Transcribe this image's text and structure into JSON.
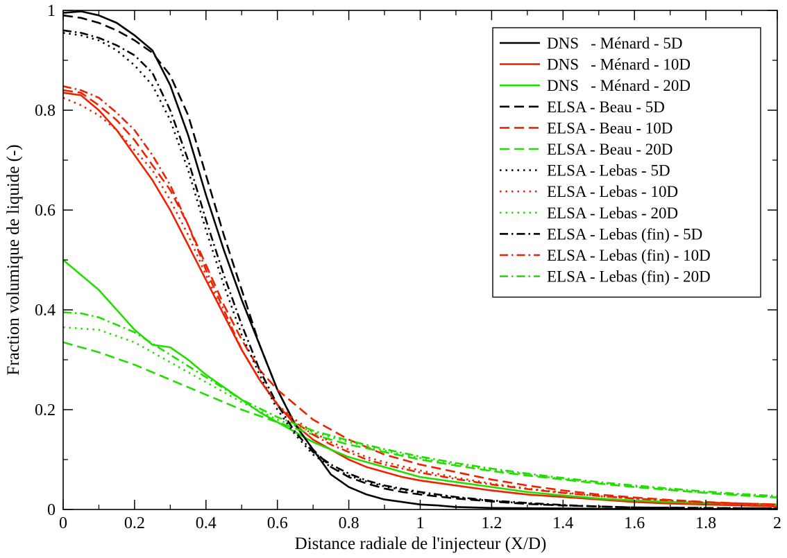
{
  "chart_data": {
    "type": "line",
    "title": "",
    "xlabel": "Distance radiale de l'injecteur (X/D)",
    "ylabel": "Fraction volumique de liquide (-)",
    "xlim": [
      0,
      2
    ],
    "ylim": [
      0,
      1
    ],
    "xticks": [
      0,
      0.2,
      0.4,
      0.6,
      0.8,
      1,
      1.2,
      1.4,
      1.6,
      1.8,
      2
    ],
    "xtick_labels": [
      "0",
      "0.2",
      "0.4",
      "0.6",
      "0.8",
      "1",
      "1.2",
      "1.4",
      "1.6",
      "1.8",
      "2"
    ],
    "yticks": [
      0,
      0.2,
      0.4,
      0.6,
      0.8,
      1
    ],
    "ytick_labels": [
      "0",
      "0.2",
      "0.4",
      "0.6",
      "0.8",
      "1"
    ],
    "grid": false,
    "legend_position": "top-right",
    "colors": {
      "black": "#000000",
      "red": "#ee2200",
      "green": "#22dd00"
    },
    "series": [
      {
        "name": "DNS   - Ménard - 5D",
        "color": "black",
        "dash": "solid",
        "x": [
          0,
          0.05,
          0.1,
          0.15,
          0.2,
          0.25,
          0.3,
          0.35,
          0.4,
          0.45,
          0.5,
          0.55,
          0.6,
          0.65,
          0.7,
          0.75,
          0.8,
          0.85,
          0.9,
          0.95,
          1.0,
          1.05,
          1.1,
          1.2,
          1.4,
          1.6,
          1.8,
          2.0
        ],
        "y": [
          0.995,
          0.998,
          0.99,
          0.975,
          0.95,
          0.92,
          0.85,
          0.75,
          0.63,
          0.52,
          0.42,
          0.33,
          0.24,
          0.17,
          0.12,
          0.07,
          0.045,
          0.03,
          0.02,
          0.015,
          0.01,
          0.008,
          0.005,
          0.003,
          0.002,
          0.001,
          0.001,
          0.001
        ]
      },
      {
        "name": "DNS   - Ménard - 10D",
        "color": "red",
        "dash": "solid",
        "x": [
          0,
          0.05,
          0.1,
          0.15,
          0.2,
          0.25,
          0.3,
          0.35,
          0.4,
          0.45,
          0.5,
          0.55,
          0.6,
          0.65,
          0.7,
          0.75,
          0.8,
          0.85,
          0.9,
          0.95,
          1.0,
          1.05,
          1.1,
          1.2,
          1.3,
          1.4,
          1.5,
          1.6,
          1.7,
          1.8,
          1.9,
          2.0
        ],
        "y": [
          0.835,
          0.83,
          0.8,
          0.76,
          0.71,
          0.66,
          0.6,
          0.53,
          0.46,
          0.39,
          0.32,
          0.26,
          0.21,
          0.17,
          0.14,
          0.12,
          0.1,
          0.085,
          0.075,
          0.065,
          0.058,
          0.053,
          0.048,
          0.038,
          0.03,
          0.025,
          0.02,
          0.015,
          0.012,
          0.01,
          0.008,
          0.006
        ]
      },
      {
        "name": "DNS   - Ménard - 20D",
        "color": "green",
        "dash": "solid",
        "x": [
          0,
          0.05,
          0.1,
          0.15,
          0.2,
          0.25,
          0.3,
          0.35,
          0.4,
          0.45,
          0.5,
          0.55,
          0.6,
          0.65,
          0.7,
          0.75,
          0.8,
          0.85,
          0.9,
          0.95,
          1.0,
          1.1,
          1.2,
          1.3,
          1.4,
          1.5,
          1.6,
          1.7,
          1.8,
          1.9,
          2.0
        ],
        "y": [
          0.5,
          0.47,
          0.44,
          0.4,
          0.36,
          0.33,
          0.325,
          0.3,
          0.27,
          0.245,
          0.22,
          0.195,
          0.175,
          0.155,
          0.135,
          0.12,
          0.105,
          0.095,
          0.085,
          0.075,
          0.065,
          0.055,
          0.045,
          0.035,
          0.028,
          0.022,
          0.018,
          0.015,
          0.013,
          0.012,
          0.01
        ]
      },
      {
        "name": "ELSA - Beau - 5D",
        "color": "black",
        "dash": "dash",
        "x": [
          0,
          0.05,
          0.1,
          0.15,
          0.2,
          0.25,
          0.3,
          0.35,
          0.4,
          0.45,
          0.5,
          0.55,
          0.6,
          0.65,
          0.7,
          0.75,
          0.8,
          0.85,
          0.9,
          0.95,
          1.0,
          1.1,
          1.2,
          1.3,
          1.4,
          1.5,
          1.6,
          1.8,
          2.0
        ],
        "y": [
          0.99,
          0.985,
          0.975,
          0.96,
          0.94,
          0.915,
          0.87,
          0.79,
          0.67,
          0.55,
          0.44,
          0.33,
          0.24,
          0.17,
          0.12,
          0.085,
          0.065,
          0.052,
          0.042,
          0.035,
          0.03,
          0.022,
          0.016,
          0.011,
          0.008,
          0.006,
          0.004,
          0.003,
          0.002
        ]
      },
      {
        "name": "ELSA - Beau - 10D",
        "color": "red",
        "dash": "dash",
        "x": [
          0,
          0.05,
          0.1,
          0.15,
          0.2,
          0.25,
          0.3,
          0.35,
          0.4,
          0.45,
          0.5,
          0.55,
          0.6,
          0.65,
          0.7,
          0.75,
          0.8,
          0.85,
          0.9,
          0.95,
          1.0,
          1.1,
          1.2,
          1.3,
          1.4,
          1.5,
          1.6,
          1.7,
          1.8,
          1.9,
          2.0
        ],
        "y": [
          0.84,
          0.835,
          0.81,
          0.78,
          0.74,
          0.69,
          0.64,
          0.57,
          0.49,
          0.41,
          0.34,
          0.28,
          0.24,
          0.21,
          0.18,
          0.16,
          0.14,
          0.125,
          0.11,
          0.1,
          0.09,
          0.075,
          0.06,
          0.048,
          0.038,
          0.03,
          0.024,
          0.019,
          0.015,
          0.012,
          0.01
        ]
      },
      {
        "name": "ELSA - Beau - 20D",
        "color": "green",
        "dash": "dash",
        "x": [
          0,
          0.1,
          0.2,
          0.3,
          0.4,
          0.5,
          0.6,
          0.7,
          0.8,
          0.9,
          1.0,
          1.1,
          1.2,
          1.3,
          1.4,
          1.5,
          1.6,
          1.7,
          1.8,
          1.9,
          2.0
        ],
        "y": [
          0.335,
          0.315,
          0.29,
          0.26,
          0.23,
          0.2,
          0.175,
          0.15,
          0.13,
          0.115,
          0.1,
          0.088,
          0.077,
          0.068,
          0.06,
          0.052,
          0.045,
          0.039,
          0.033,
          0.028,
          0.024
        ]
      },
      {
        "name": "ELSA - Lebas - 5D",
        "color": "black",
        "dash": "dot",
        "x": [
          0,
          0.05,
          0.1,
          0.15,
          0.2,
          0.25,
          0.3,
          0.35,
          0.4,
          0.45,
          0.5,
          0.55,
          0.6,
          0.65,
          0.7,
          0.75,
          0.8,
          0.85,
          0.9,
          1.0,
          1.1,
          1.2,
          1.3,
          1.4,
          1.5,
          1.6,
          1.8,
          2.0
        ],
        "y": [
          0.955,
          0.95,
          0.94,
          0.92,
          0.89,
          0.85,
          0.78,
          0.68,
          0.56,
          0.45,
          0.35,
          0.27,
          0.2,
          0.15,
          0.11,
          0.085,
          0.068,
          0.056,
          0.046,
          0.033,
          0.024,
          0.017,
          0.012,
          0.008,
          0.006,
          0.004,
          0.003,
          0.002
        ]
      },
      {
        "name": "ELSA - Lebas - 10D",
        "color": "red",
        "dash": "dot",
        "x": [
          0,
          0.05,
          0.1,
          0.15,
          0.2,
          0.25,
          0.3,
          0.35,
          0.4,
          0.45,
          0.5,
          0.55,
          0.6,
          0.65,
          0.7,
          0.75,
          0.8,
          0.85,
          0.9,
          1.0,
          1.1,
          1.2,
          1.3,
          1.4,
          1.5,
          1.6,
          1.7,
          1.8,
          1.9,
          2.0
        ],
        "y": [
          0.825,
          0.81,
          0.79,
          0.76,
          0.72,
          0.68,
          0.62,
          0.55,
          0.47,
          0.39,
          0.32,
          0.26,
          0.21,
          0.18,
          0.155,
          0.135,
          0.12,
          0.105,
          0.095,
          0.078,
          0.064,
          0.052,
          0.042,
          0.034,
          0.027,
          0.022,
          0.018,
          0.014,
          0.011,
          0.009
        ]
      },
      {
        "name": "ELSA - Lebas - 20D",
        "color": "green",
        "dash": "dot",
        "x": [
          0,
          0.1,
          0.2,
          0.3,
          0.4,
          0.5,
          0.6,
          0.7,
          0.8,
          0.9,
          1.0,
          1.1,
          1.2,
          1.3,
          1.4,
          1.5,
          1.6,
          1.7,
          1.8,
          1.9,
          2.0
        ],
        "y": [
          0.365,
          0.36,
          0.335,
          0.295,
          0.255,
          0.215,
          0.18,
          0.155,
          0.135,
          0.118,
          0.103,
          0.09,
          0.079,
          0.07,
          0.061,
          0.053,
          0.046,
          0.04,
          0.034,
          0.029,
          0.025
        ]
      },
      {
        "name": "ELSA - Lebas (fin) - 5D",
        "color": "black",
        "dash": "dashdot",
        "x": [
          0,
          0.05,
          0.1,
          0.15,
          0.2,
          0.25,
          0.3,
          0.35,
          0.4,
          0.45,
          0.5,
          0.55,
          0.6,
          0.65,
          0.7,
          0.75,
          0.8,
          0.85,
          0.9,
          1.0,
          1.1,
          1.2,
          1.3,
          1.4,
          1.5,
          1.6,
          1.8,
          2.0
        ],
        "y": [
          0.96,
          0.955,
          0.945,
          0.93,
          0.91,
          0.875,
          0.8,
          0.7,
          0.58,
          0.47,
          0.37,
          0.28,
          0.21,
          0.155,
          0.115,
          0.09,
          0.072,
          0.058,
          0.048,
          0.035,
          0.025,
          0.018,
          0.013,
          0.009,
          0.006,
          0.004,
          0.003,
          0.002
        ]
      },
      {
        "name": "ELSA - Lebas (fin) - 10D",
        "color": "red",
        "dash": "dashdot",
        "x": [
          0,
          0.05,
          0.1,
          0.15,
          0.2,
          0.25,
          0.3,
          0.35,
          0.4,
          0.45,
          0.5,
          0.55,
          0.6,
          0.65,
          0.7,
          0.75,
          0.8,
          0.85,
          0.9,
          1.0,
          1.1,
          1.2,
          1.3,
          1.4,
          1.5,
          1.6,
          1.7,
          1.8,
          1.9,
          2.0
        ],
        "y": [
          0.848,
          0.84,
          0.825,
          0.795,
          0.76,
          0.71,
          0.65,
          0.57,
          0.48,
          0.4,
          0.32,
          0.26,
          0.21,
          0.175,
          0.15,
          0.13,
          0.115,
          0.1,
          0.09,
          0.074,
          0.061,
          0.05,
          0.041,
          0.033,
          0.027,
          0.022,
          0.018,
          0.014,
          0.012,
          0.01
        ]
      },
      {
        "name": "ELSA - Lebas (fin) - 20D",
        "color": "green",
        "dash": "dashdot",
        "x": [
          0,
          0.05,
          0.1,
          0.2,
          0.3,
          0.4,
          0.5,
          0.6,
          0.7,
          0.8,
          0.9,
          1.0,
          1.1,
          1.2,
          1.3,
          1.4,
          1.5,
          1.6,
          1.7,
          1.8,
          1.9,
          2.0
        ],
        "y": [
          0.395,
          0.393,
          0.385,
          0.355,
          0.31,
          0.265,
          0.22,
          0.185,
          0.158,
          0.138,
          0.121,
          0.106,
          0.093,
          0.082,
          0.072,
          0.063,
          0.055,
          0.048,
          0.042,
          0.036,
          0.031,
          0.027
        ]
      }
    ]
  }
}
